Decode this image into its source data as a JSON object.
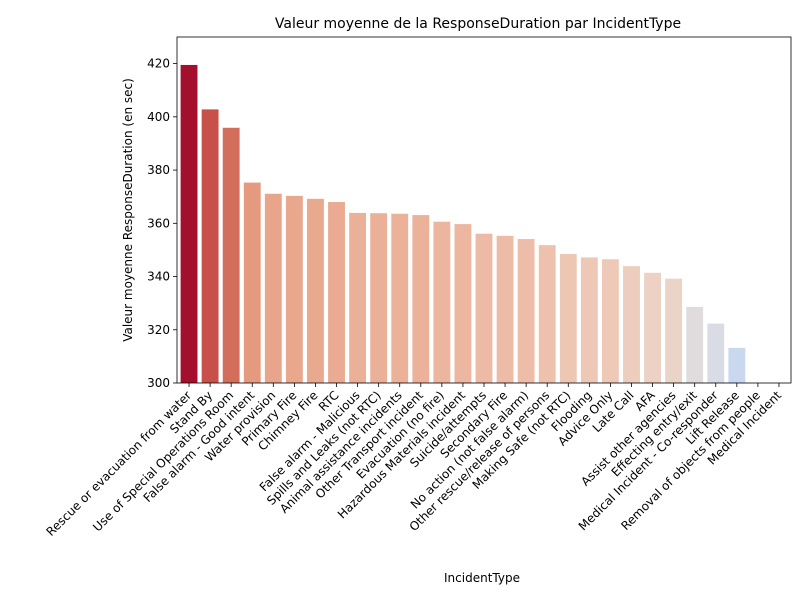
{
  "chart_data": {
    "type": "bar",
    "title": "Valeur moyenne de la ResponseDuration par IncidentType",
    "xlabel": "IncidentType",
    "ylabel": "Valeur moyenne ResponseDuration (en sec)",
    "ylim": [
      300,
      430
    ],
    "yticks": [
      300,
      320,
      340,
      360,
      380,
      400,
      420
    ],
    "grid": false,
    "legend": "none",
    "palette": "coolwarm",
    "categories": [
      "Rescue or evacuation from water",
      "Stand By",
      "Use of Special Operations Room",
      "False alarm - Good intent",
      "Water provision",
      "Primary Fire",
      "Chimney Fire",
      "RTC",
      "False alarm - Malicious",
      "Spills and Leaks (not RTC)",
      "Animal assistance incidents",
      "Other Transport incident",
      "Evacuation (no fire)",
      "Hazardous Materials incident",
      "Suicide/attempts",
      "Secondary Fire",
      "No action (not false alarm)",
      "Other rescue/release of persons",
      "Making Safe (not RTC)",
      "Flooding",
      "Advice Only",
      "Late Call",
      "AFA",
      "Assist other agencies",
      "Effecting entry/exit",
      "Medical Incident - Co-responder",
      "Lift Release",
      "Removal of objects from people",
      "Medical Incident"
    ],
    "values": [
      419.5,
      402.8,
      395.9,
      375.3,
      371.1,
      370.3,
      369.2,
      368.0,
      363.9,
      363.8,
      363.6,
      363.1,
      360.6,
      359.7,
      356.1,
      355.3,
      354.1,
      351.8,
      348.5,
      347.2,
      346.5,
      343.9,
      341.4,
      339.2,
      328.6,
      322.3,
      313.2,
      300.0,
      300.0
    ],
    "colors": [
      "#a50f2e",
      "#c8504a",
      "#d46e5c",
      "#e59a7f",
      "#e8a58c",
      "#e9a78e",
      "#e9a98f",
      "#eaab92",
      "#ebb098",
      "#ebb098",
      "#ebb199",
      "#ebb299",
      "#ecb59e",
      "#ecb6a0",
      "#edbba5",
      "#edbca7",
      "#eebda9",
      "#eec1ad",
      "#eec6b4",
      "#eec8b6",
      "#eec9b8",
      "#edcdbe",
      "#edd1c4",
      "#ead4c8",
      "#e0dcdd",
      "#d9dce4",
      "#c9d7ef",
      "#bdd0f5",
      "#bdd0f5"
    ]
  }
}
